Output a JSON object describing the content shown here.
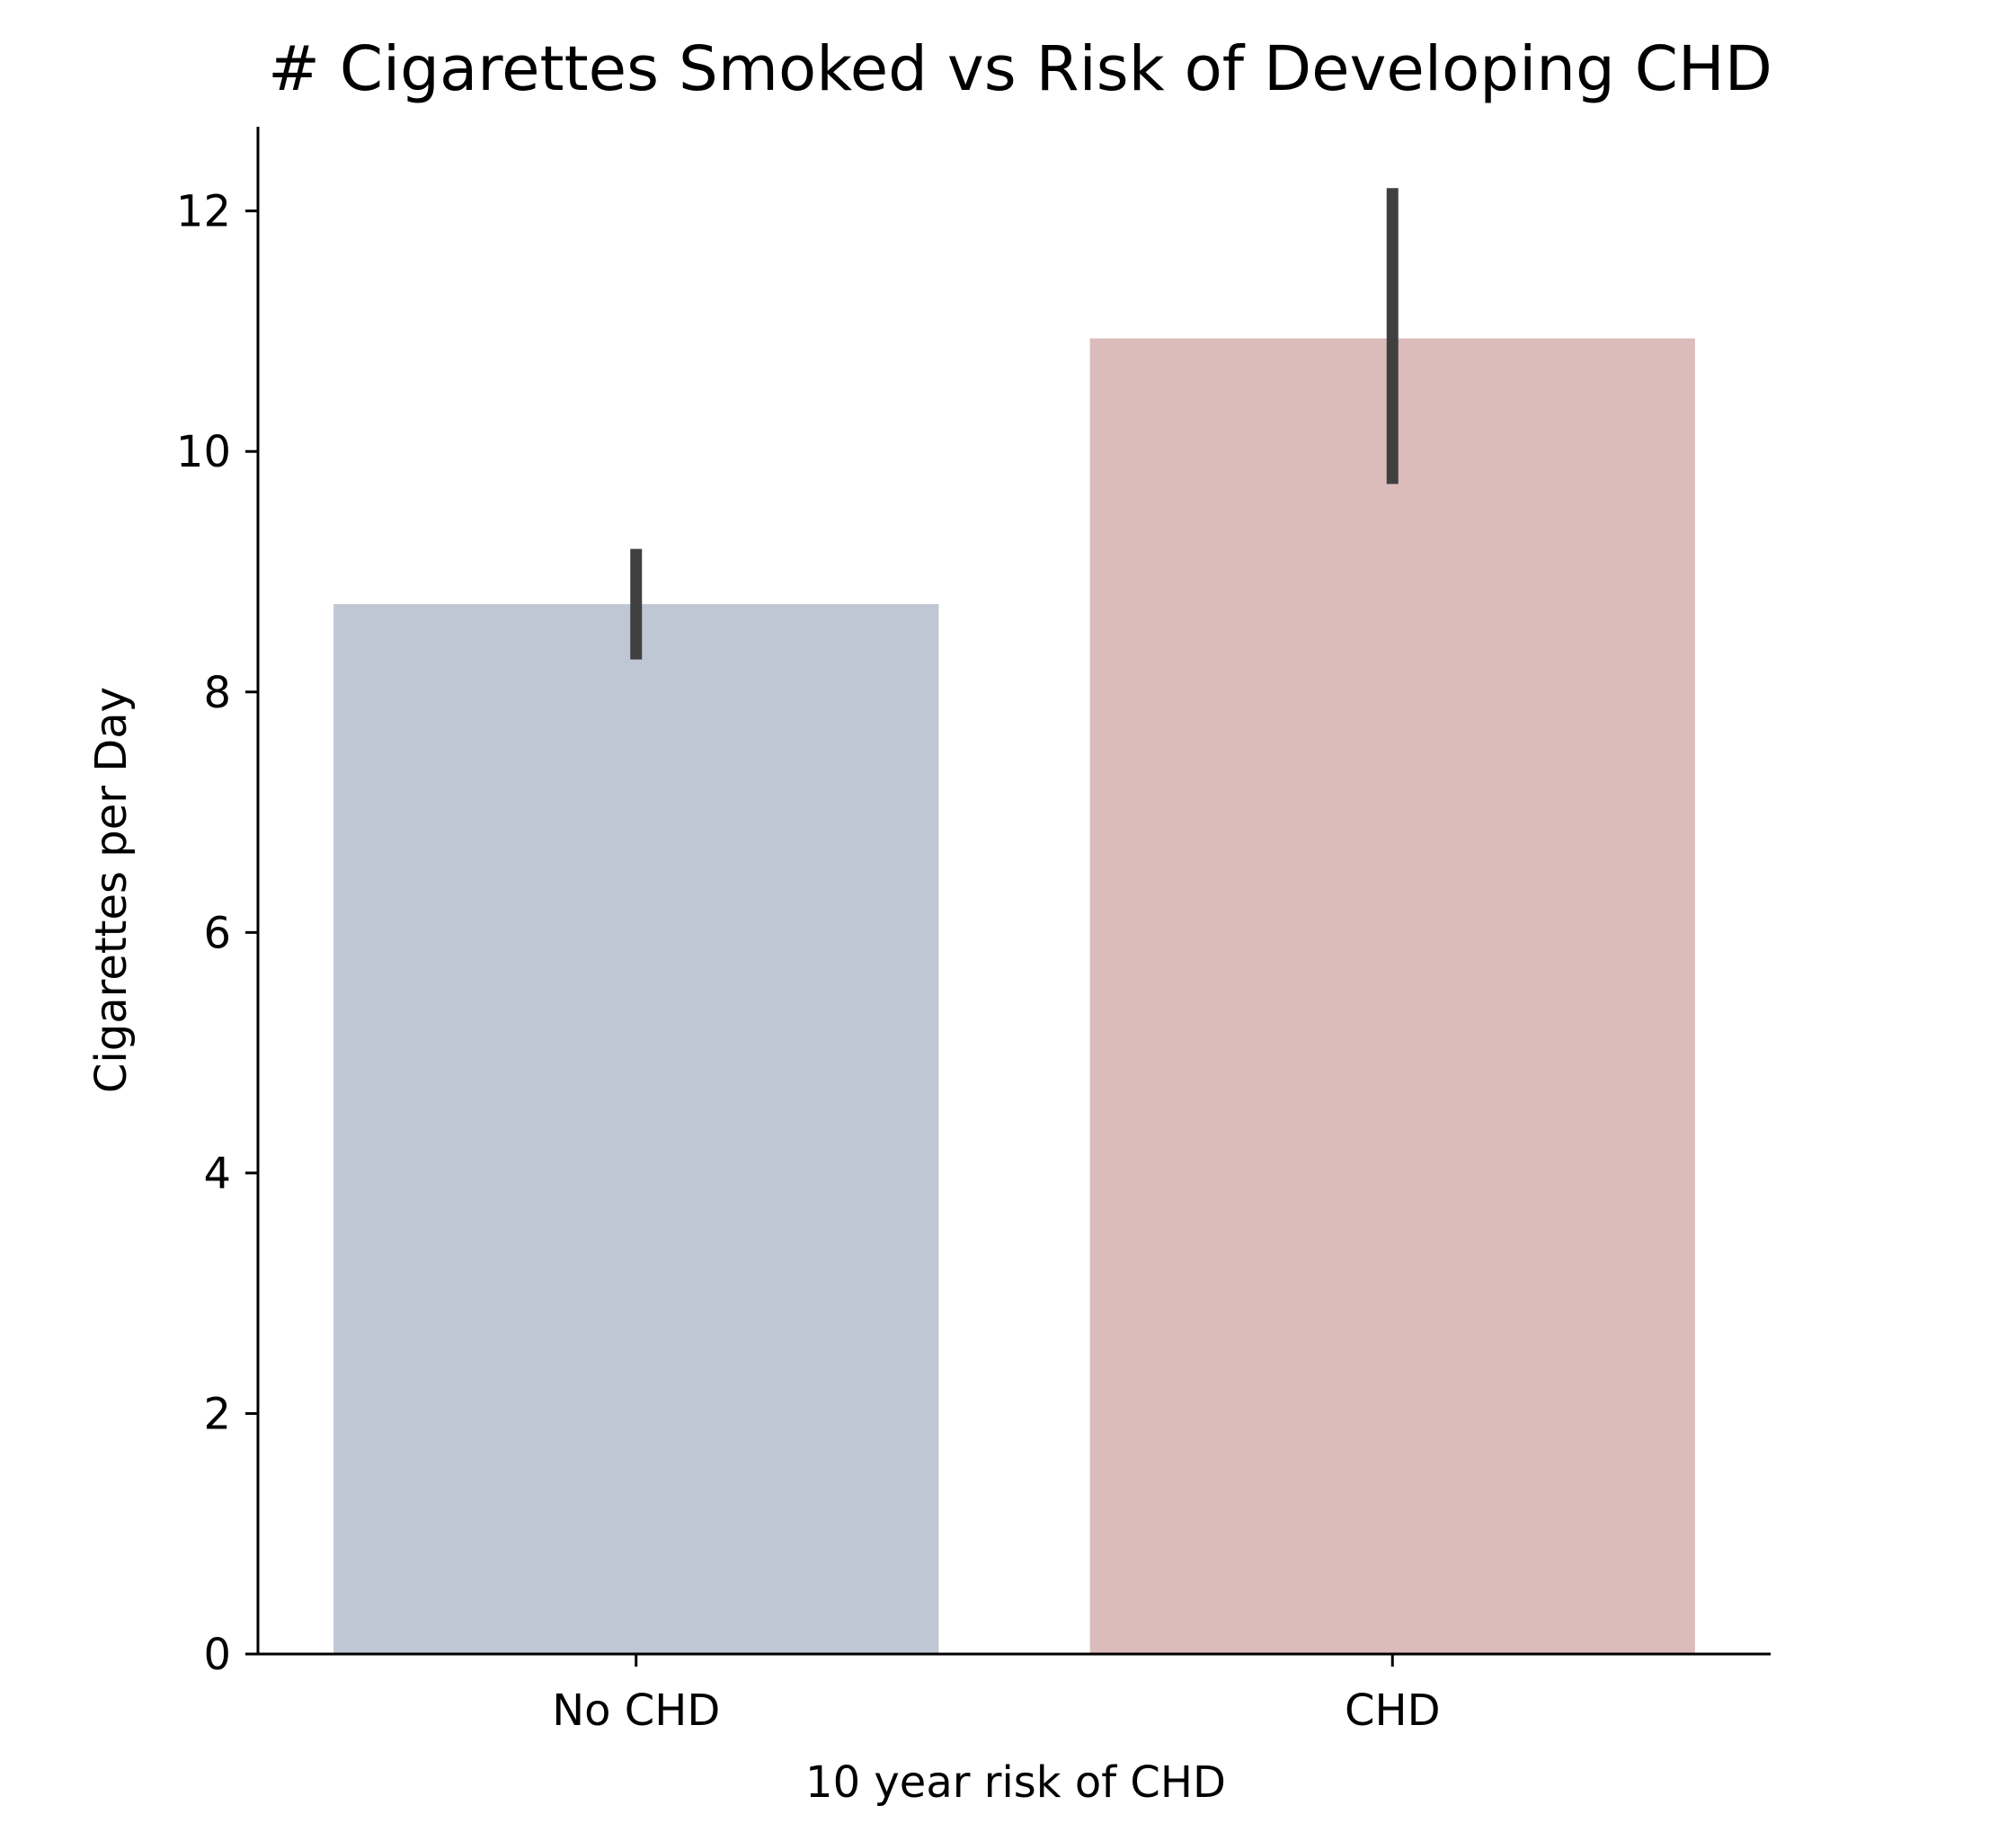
{
  "chart_data": {
    "type": "bar",
    "title": "# Cigarettes Smoked vs Risk of Developing CHD",
    "xlabel": "10 year risk of CHD",
    "ylabel": "Cigarettes per Day",
    "categories": [
      "No CHD",
      "CHD"
    ],
    "values": [
      8.73,
      10.94
    ],
    "error_low": [
      8.27,
      9.73
    ],
    "error_high": [
      9.19,
      12.19
    ],
    "colors": [
      "#bfc6d4",
      "#dbbcbb"
    ],
    "error_color": "#404040",
    "ylim": [
      0,
      12.7
    ],
    "yticks": [
      0,
      2,
      4,
      6,
      8,
      10,
      12
    ],
    "ytick_labels": [
      "0",
      "2",
      "4",
      "6",
      "8",
      "10",
      "12"
    ],
    "grid": false,
    "legend": "none"
  }
}
